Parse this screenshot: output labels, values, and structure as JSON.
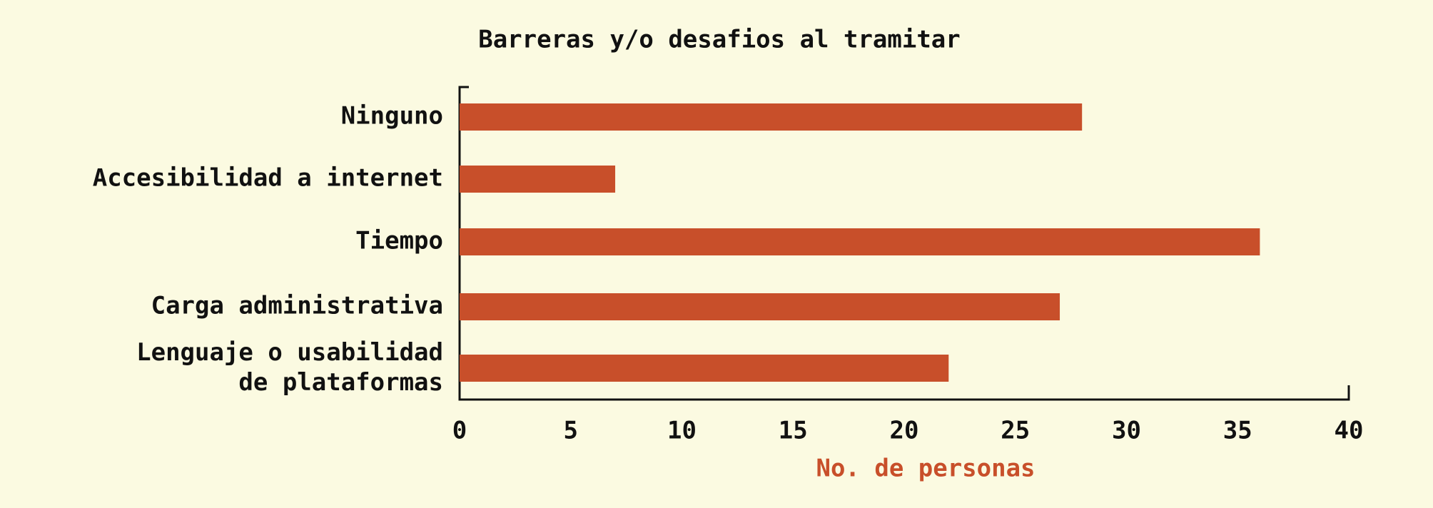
{
  "chart_data": {
    "type": "barh",
    "title": "Barreras y/o desafios al tramitar",
    "x_label": "No. de personas",
    "categories": [
      "Ninguno",
      "Accesibilidad a internet",
      "Tiempo",
      "Carga administrativa",
      "Lenguaje o usabilidad\nde plataformas"
    ],
    "values": [
      28,
      7,
      36,
      27,
      22
    ],
    "color": "#c84f2a",
    "xlim": [
      0,
      40
    ],
    "xticks": [
      0,
      5,
      10,
      15,
      20,
      25,
      30,
      35,
      40
    ],
    "grid": false
  }
}
